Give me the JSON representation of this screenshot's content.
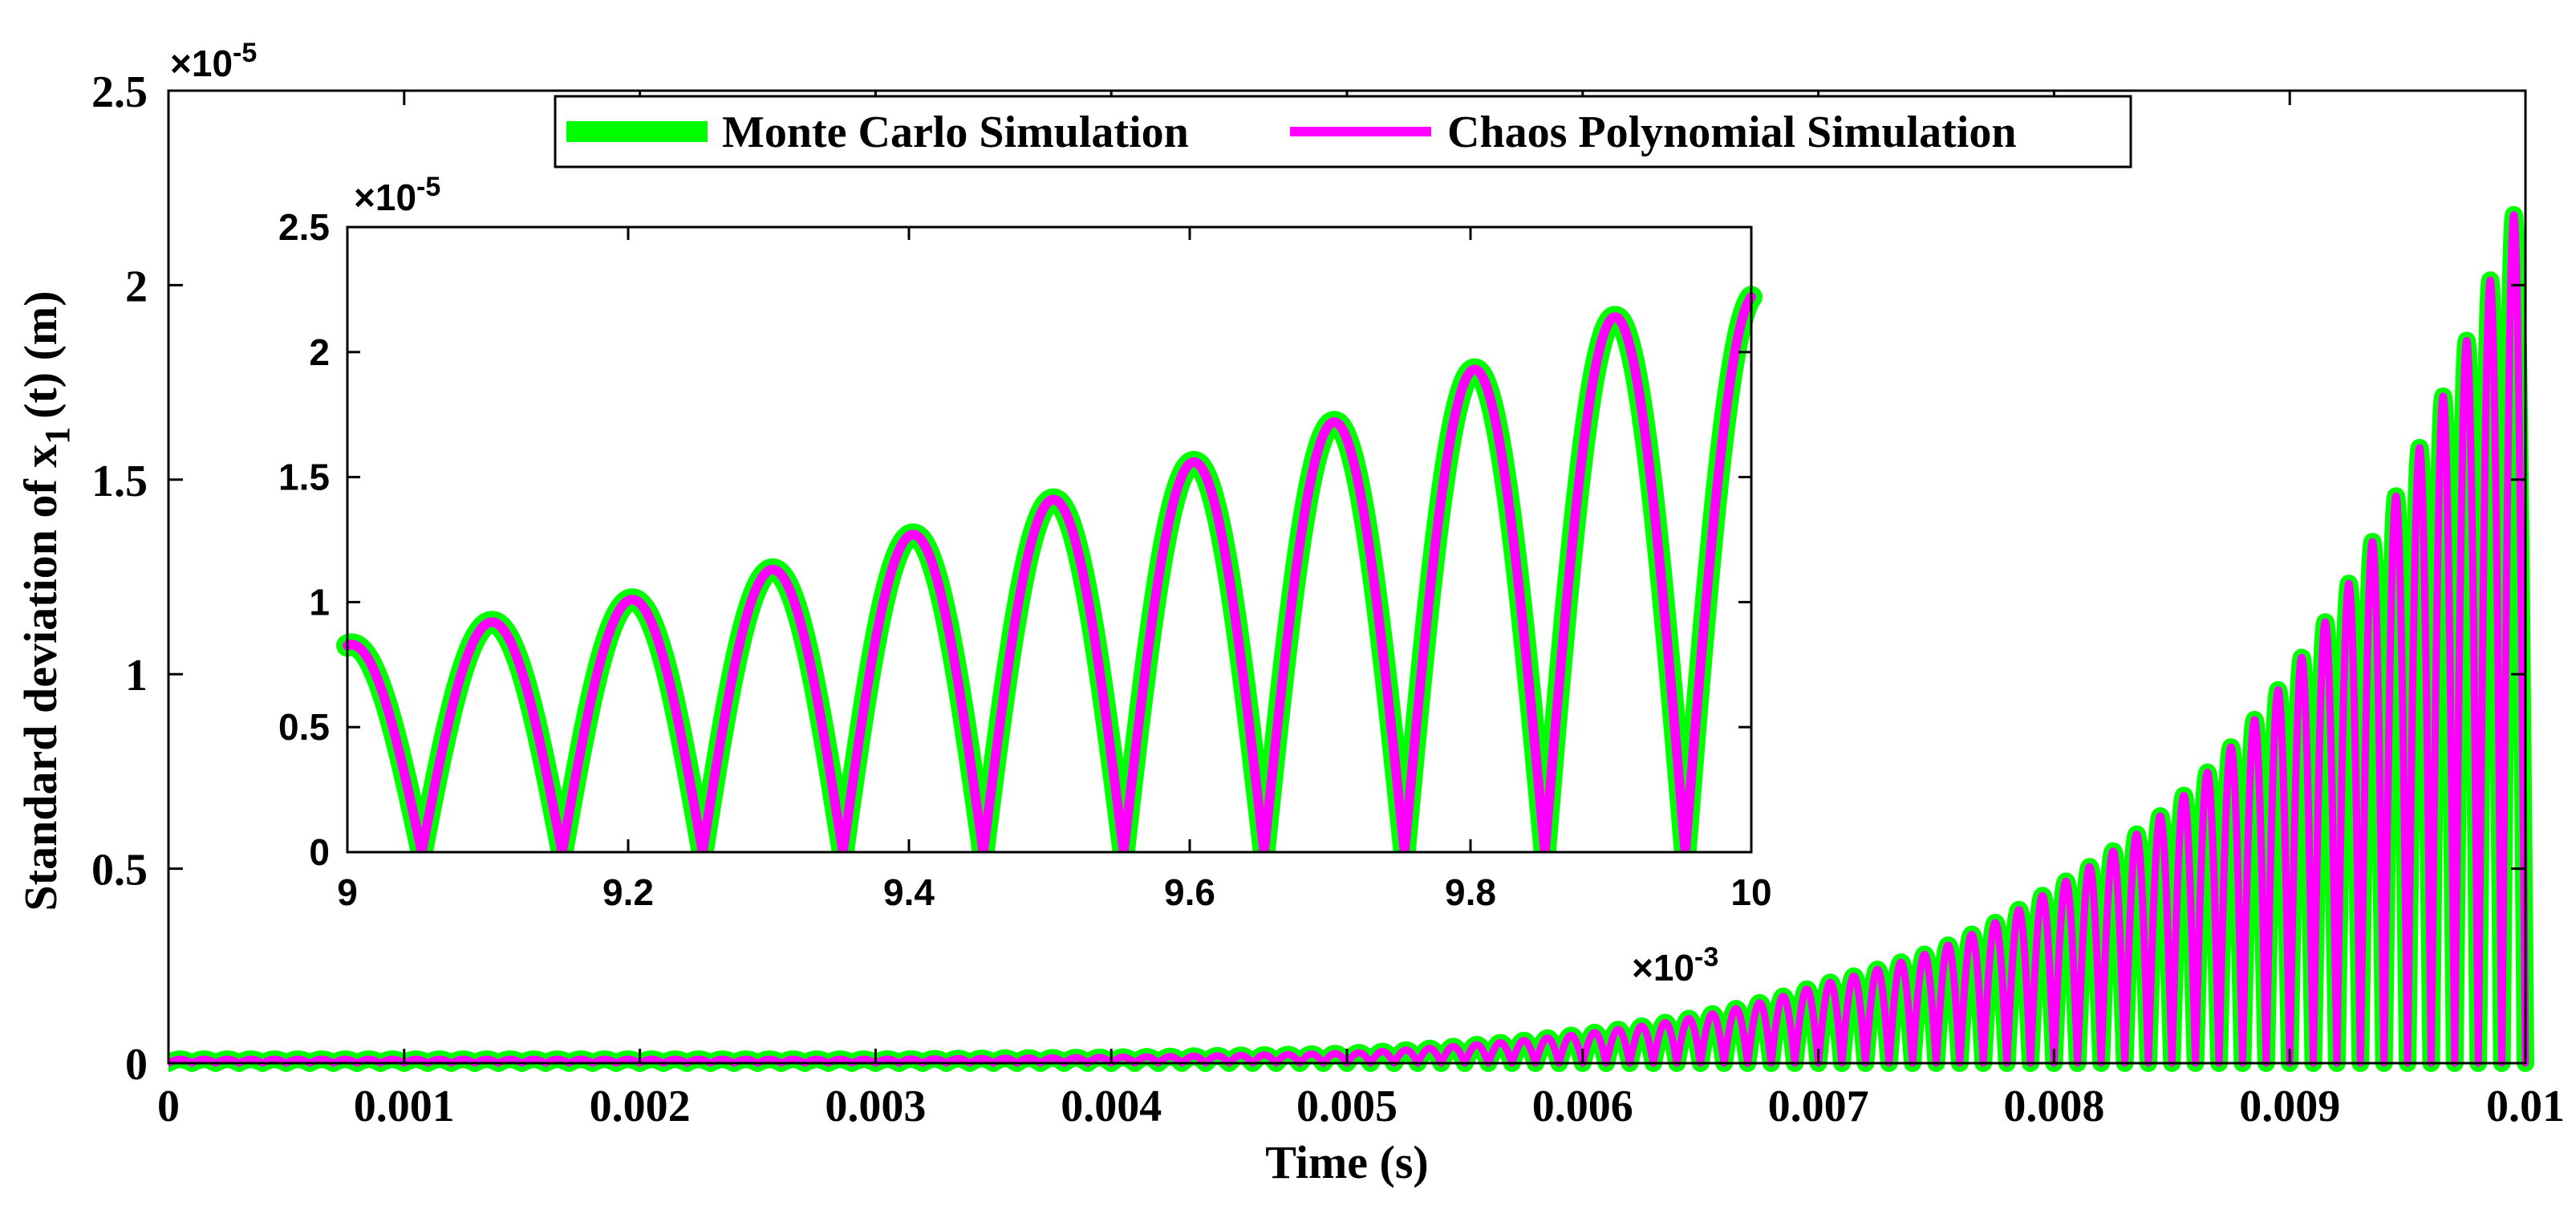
{
  "chart_data": [
    {
      "id": "main",
      "type": "line",
      "xlabel": "Time (s)",
      "ylabel_prefix": "Standard deviation of x",
      "ylabel_subscript": "1",
      "ylabel_suffix": "(t) (m)",
      "xlim": [
        0,
        0.01
      ],
      "ylim": [
        0,
        2.5e-05
      ],
      "x_ticks": [
        0,
        0.001,
        0.002,
        0.003,
        0.004,
        0.005,
        0.006,
        0.007,
        0.008,
        0.009,
        0.01
      ],
      "x_tick_labels": [
        "0",
        "0.001",
        "0.002",
        "0.003",
        "0.004",
        "0.005",
        "0.006",
        "0.007",
        "0.008",
        "0.009",
        "0.01"
      ],
      "y_ticks": [
        0,
        5e-06,
        1e-05,
        1.5e-05,
        2e-05,
        2.5e-05
      ],
      "y_tick_labels": [
        "0",
        "0.5",
        "1",
        "1.5",
        "2",
        "2.5"
      ],
      "y_exponent_base": "×10",
      "y_exponent": "-5",
      "grid": false,
      "legend_position": "top-center",
      "series": [
        {
          "name": "Monte Carlo Simulation",
          "color": "#00ff00",
          "stroke_role": "thick"
        },
        {
          "name": "Chaos Polynomial Simulation",
          "color": "#ff00ff",
          "stroke_role": "thin"
        }
      ],
      "oscillation": {
        "period_s": 0.0001,
        "envelope_points": [
          [
            0,
            1e-07
          ],
          [
            0.001,
            1e-07
          ],
          [
            0.002,
            1e-07
          ],
          [
            0.003,
            1e-07
          ],
          [
            0.004,
            1.5e-07
          ],
          [
            0.005,
            2.5e-07
          ],
          [
            0.0055,
            4.5e-07
          ],
          [
            0.006,
            7.5e-07
          ],
          [
            0.0065,
            1.2e-06
          ],
          [
            0.007,
            2e-06
          ],
          [
            0.0075,
            2.9e-06
          ],
          [
            0.008,
            4.5e-06
          ],
          [
            0.0085,
            6.6e-06
          ],
          [
            0.009,
            1e-05
          ],
          [
            0.0095,
            1.52e-05
          ],
          [
            0.01,
            2.27e-05
          ]
        ]
      }
    },
    {
      "id": "inset",
      "type": "line",
      "xlabel": "",
      "ylabel": "",
      "xlim": [
        9,
        10
      ],
      "ylim": [
        0,
        2.5e-05
      ],
      "x_ticks": [
        9,
        9.2,
        9.4,
        9.6,
        9.8,
        10
      ],
      "x_tick_labels": [
        "9",
        "9.2",
        "9.4",
        "9.6",
        "9.8",
        "10"
      ],
      "y_ticks": [
        0,
        5e-06,
        1e-05,
        1.5e-05,
        2e-05,
        2.5e-05
      ],
      "y_tick_labels": [
        "0",
        "0.5",
        "1",
        "1.5",
        "2",
        "2.5"
      ],
      "x_exponent_base": "×10",
      "x_exponent": "-3",
      "y_exponent_base": "×10",
      "y_exponent": "-5",
      "grid": false,
      "series": [
        {
          "name": "Monte Carlo Simulation",
          "color": "#00ff00",
          "stroke_role": "thick"
        },
        {
          "name": "Chaos Polynomial Simulation",
          "color": "#ff00ff",
          "stroke_role": "thin"
        }
      ],
      "zeros_x": [
        9.053,
        9.153,
        9.253,
        9.353,
        9.453,
        9.553,
        9.653,
        9.753,
        9.853,
        9.953
      ],
      "peaks": [
        [
          9.008,
          8.3e-06
        ],
        [
          9.105,
          9.2e-06
        ],
        [
          9.207,
          1.01e-05
        ],
        [
          9.307,
          1.13e-05
        ],
        [
          9.408,
          1.27e-05
        ],
        [
          9.508,
          1.41e-05
        ],
        [
          9.608,
          1.56e-05
        ],
        [
          9.708,
          1.72e-05
        ],
        [
          9.808,
          1.93e-05
        ],
        [
          9.908,
          2.14e-05
        ]
      ],
      "start_point": [
        9.0,
        8e-06
      ],
      "end_point": [
        10.0,
        2.22e-05
      ]
    }
  ]
}
